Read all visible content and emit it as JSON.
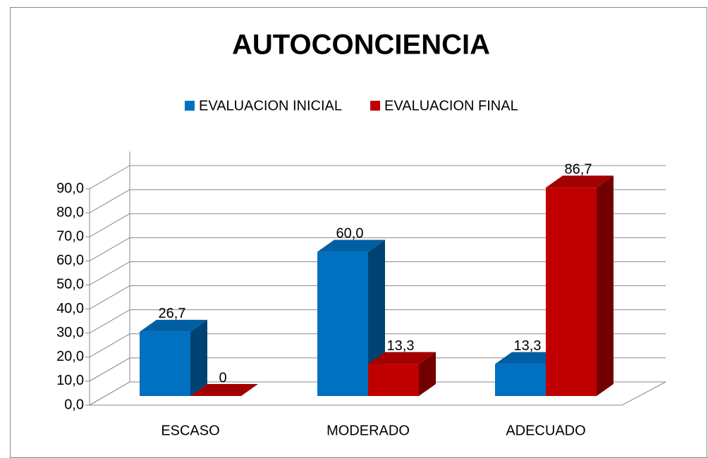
{
  "chart_data": {
    "type": "bar3d",
    "title": "AUTOCONCIENCIA",
    "categories": [
      "ESCASO",
      "MODERADO",
      "ADECUADO"
    ],
    "series": [
      {
        "name": "EVALUACION INICIAL",
        "color": "#0070c0",
        "values": [
          26.7,
          60.0,
          13.3
        ],
        "value_labels": [
          "26,7",
          "60,0",
          "13,3"
        ]
      },
      {
        "name": "EVALUACION FINAL",
        "color": "#c00000",
        "values": [
          0,
          13.3,
          86.7
        ],
        "value_labels": [
          "0",
          "13,3",
          "86,7"
        ]
      }
    ],
    "ylim": [
      0,
      90
    ],
    "yticks": [
      {
        "value": 0,
        "label": "0,0"
      },
      {
        "value": 10,
        "label": "10,0"
      },
      {
        "value": 20,
        "label": "20,0"
      },
      {
        "value": 30,
        "label": "30,0"
      },
      {
        "value": 40,
        "label": "40,0"
      },
      {
        "value": 50,
        "label": "50,0"
      },
      {
        "value": 60,
        "label": "60,0"
      },
      {
        "value": 70,
        "label": "70,0"
      },
      {
        "value": 80,
        "label": "80,0"
      },
      {
        "value": 90,
        "label": "90,0"
      }
    ],
    "grid": true,
    "legend": "top"
  }
}
